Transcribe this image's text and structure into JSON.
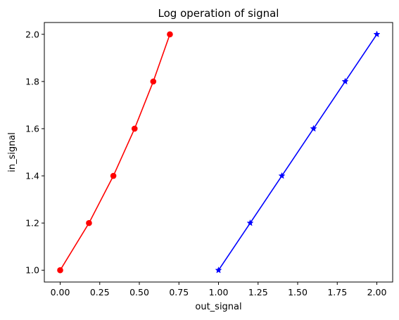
{
  "chart_data": {
    "type": "line",
    "title": "Log operation of signal",
    "xlabel": "out_signal",
    "ylabel": "in_signal",
    "xlim": [
      -0.1,
      2.1
    ],
    "ylim": [
      0.95,
      2.05
    ],
    "x_ticks": [
      "0.00",
      "0.25",
      "0.50",
      "0.75",
      "1.00",
      "1.25",
      "1.50",
      "1.75",
      "2.00"
    ],
    "y_ticks": [
      "1.0",
      "1.2",
      "1.4",
      "1.6",
      "1.8",
      "2.0"
    ],
    "grid": false,
    "series": [
      {
        "color": "#ff0000",
        "marker": "circle",
        "x": [
          0.0,
          0.182,
          0.336,
          0.47,
          0.588,
          0.693
        ],
        "y": [
          1.0,
          1.2,
          1.4,
          1.6,
          1.8,
          2.0
        ]
      },
      {
        "color": "#0000ff",
        "marker": "star",
        "x": [
          1.0,
          1.2,
          1.4,
          1.6,
          1.8,
          2.0
        ],
        "y": [
          1.0,
          1.2,
          1.4,
          1.6,
          1.8,
          2.0
        ]
      }
    ]
  }
}
